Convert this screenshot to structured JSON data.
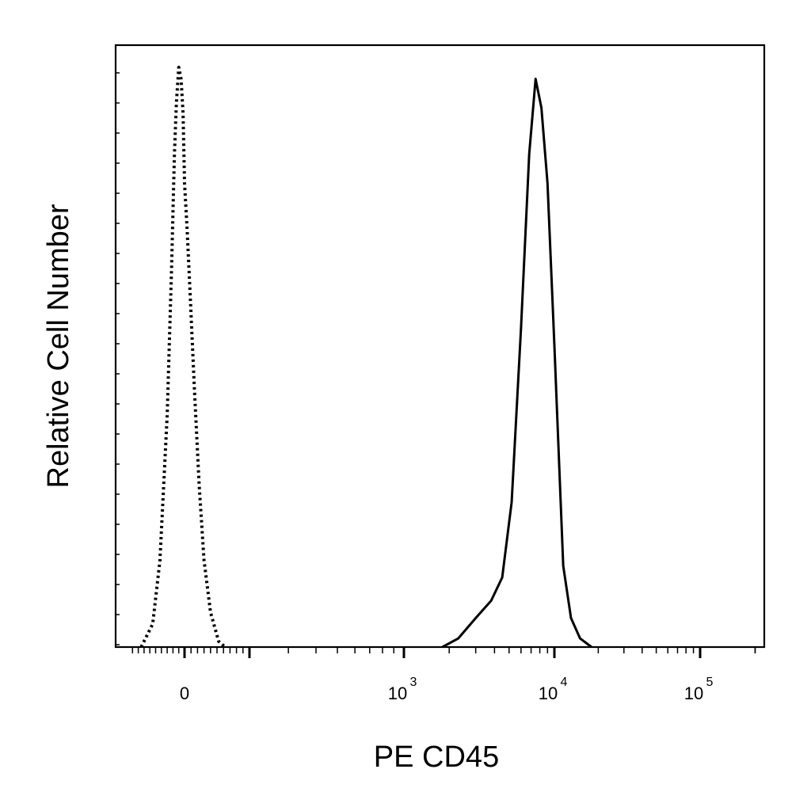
{
  "chart_data": {
    "type": "line",
    "xlabel": "PE CD45",
    "ylabel": "Relative Cell Number",
    "x_scale": "biexponential",
    "xlim": [
      -200,
      220000
    ],
    "ylim": [
      0,
      100
    ],
    "x_ticks": [
      {
        "base": "0",
        "exp": "",
        "value": 0
      },
      {
        "base": "10",
        "exp": "3",
        "value": 1000
      },
      {
        "base": "10",
        "exp": "4",
        "value": 10000
      },
      {
        "base": "10",
        "exp": "5",
        "value": 100000
      }
    ],
    "series": [
      {
        "style": "dotted",
        "color": "#000000",
        "x": [
          -150,
          -110,
          -85,
          -60,
          -45,
          -35,
          -28,
          -20,
          -12,
          -5,
          0,
          8,
          18,
          30,
          45,
          60,
          80,
          105,
          125
        ],
        "y": [
          0,
          4,
          15,
          40,
          65,
          85,
          94,
          100,
          98,
          92,
          80,
          72,
          60,
          45,
          28,
          15,
          6,
          1,
          0
        ]
      },
      {
        "style": "solid",
        "color": "#000000",
        "x": [
          1800,
          2300,
          3000,
          3800,
          4500,
          5200,
          6000,
          6800,
          7500,
          8200,
          9000,
          10000,
          11500,
          13000,
          15000,
          18000
        ],
        "y": [
          0,
          1.5,
          5,
          8,
          12,
          25,
          55,
          85,
          98,
          93,
          80,
          52,
          14,
          5,
          1.5,
          0
        ]
      }
    ]
  }
}
